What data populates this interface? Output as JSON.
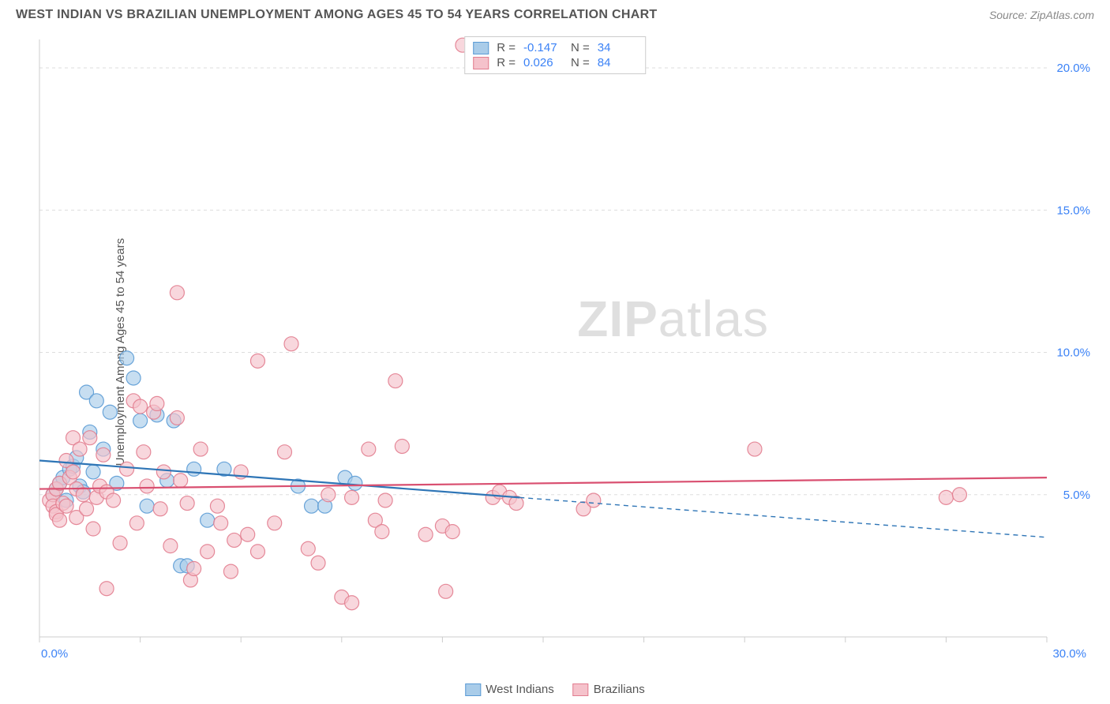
{
  "header": {
    "title": "WEST INDIAN VS BRAZILIAN UNEMPLOYMENT AMONG AGES 45 TO 54 YEARS CORRELATION CHART",
    "source": "Source: ZipAtlas.com"
  },
  "chart": {
    "type": "scatter",
    "ylabel": "Unemployment Among Ages 45 to 54 years",
    "xlim": [
      0,
      30
    ],
    "ylim": [
      0,
      21
    ],
    "x_ticks": [
      0,
      3,
      6,
      9,
      12,
      15,
      18,
      21,
      24,
      27,
      30
    ],
    "x_tick_labels": {
      "0": "0.0%",
      "30": "30.0%"
    },
    "y_ticks": [
      5,
      10,
      15,
      20
    ],
    "y_tick_labels": {
      "5": "5.0%",
      "10": "10.0%",
      "15": "15.0%",
      "20": "20.0%"
    },
    "grid_color": "#dddddd",
    "grid_dash": "4,4",
    "axis_color": "#cccccc",
    "background_color": "#ffffff",
    "tick_label_color": "#3b82f6",
    "marker_radius": 9,
    "marker_opacity": 0.65,
    "line_width": 2.2,
    "series": [
      {
        "name": "West Indians",
        "key": "west_indians",
        "color_fill": "#a9cce9",
        "color_stroke": "#5b9bd5",
        "line_color": "#2e75b6",
        "R": "-0.147",
        "N": "34",
        "trend": {
          "x1": 0,
          "y1": 6.2,
          "x2": 14.3,
          "y2": 4.9,
          "ext_x2": 30,
          "ext_y2": 3.5
        },
        "points": [
          [
            0.4,
            5.0
          ],
          [
            0.5,
            5.2
          ],
          [
            0.6,
            5.4
          ],
          [
            0.7,
            5.6
          ],
          [
            0.8,
            4.8
          ],
          [
            0.9,
            5.9
          ],
          [
            1.0,
            6.0
          ],
          [
            1.1,
            6.3
          ],
          [
            1.2,
            5.3
          ],
          [
            1.3,
            5.1
          ],
          [
            1.4,
            8.6
          ],
          [
            1.5,
            7.2
          ],
          [
            1.6,
            5.8
          ],
          [
            1.7,
            8.3
          ],
          [
            1.9,
            6.6
          ],
          [
            2.1,
            7.9
          ],
          [
            2.3,
            5.4
          ],
          [
            2.6,
            9.8
          ],
          [
            2.8,
            9.1
          ],
          [
            3.0,
            7.6
          ],
          [
            3.2,
            4.6
          ],
          [
            3.5,
            7.8
          ],
          [
            3.8,
            5.5
          ],
          [
            4.0,
            7.6
          ],
          [
            4.2,
            2.5
          ],
          [
            4.4,
            2.5
          ],
          [
            4.6,
            5.9
          ],
          [
            5.0,
            4.1
          ],
          [
            5.5,
            5.9
          ],
          [
            7.7,
            5.3
          ],
          [
            8.1,
            4.6
          ],
          [
            8.5,
            4.6
          ],
          [
            9.1,
            5.6
          ],
          [
            9.4,
            5.4
          ]
        ]
      },
      {
        "name": "Brazilians",
        "key": "brazilians",
        "color_fill": "#f5c2cb",
        "color_stroke": "#e27d8f",
        "line_color": "#d94f70",
        "R": "0.026",
        "N": "84",
        "trend": {
          "x1": 0,
          "y1": 5.2,
          "x2": 30,
          "y2": 5.6,
          "ext_x2": 30,
          "ext_y2": 5.6
        },
        "points": [
          [
            0.3,
            4.8
          ],
          [
            0.4,
            5.0
          ],
          [
            0.4,
            4.6
          ],
          [
            0.5,
            4.4
          ],
          [
            0.5,
            5.2
          ],
          [
            0.5,
            4.3
          ],
          [
            0.6,
            4.1
          ],
          [
            0.6,
            5.4
          ],
          [
            0.7,
            4.7
          ],
          [
            0.8,
            6.2
          ],
          [
            0.8,
            4.6
          ],
          [
            0.9,
            5.6
          ],
          [
            1.0,
            7.0
          ],
          [
            1.0,
            5.8
          ],
          [
            1.1,
            4.2
          ],
          [
            1.1,
            5.2
          ],
          [
            1.2,
            6.6
          ],
          [
            1.3,
            5.0
          ],
          [
            1.4,
            4.5
          ],
          [
            1.5,
            7.0
          ],
          [
            1.6,
            3.8
          ],
          [
            1.7,
            4.9
          ],
          [
            1.8,
            5.3
          ],
          [
            1.9,
            6.4
          ],
          [
            2.0,
            5.1
          ],
          [
            2.0,
            1.7
          ],
          [
            2.2,
            4.8
          ],
          [
            2.4,
            3.3
          ],
          [
            2.6,
            5.9
          ],
          [
            2.8,
            8.3
          ],
          [
            2.9,
            4.0
          ],
          [
            3.0,
            8.1
          ],
          [
            3.1,
            6.5
          ],
          [
            3.2,
            5.3
          ],
          [
            3.4,
            7.9
          ],
          [
            3.5,
            8.2
          ],
          [
            3.6,
            4.5
          ],
          [
            3.7,
            5.8
          ],
          [
            3.9,
            3.2
          ],
          [
            4.1,
            7.7
          ],
          [
            4.1,
            12.1
          ],
          [
            4.2,
            5.5
          ],
          [
            4.4,
            4.7
          ],
          [
            4.5,
            2.0
          ],
          [
            4.6,
            2.4
          ],
          [
            4.8,
            6.6
          ],
          [
            5.0,
            3.0
          ],
          [
            5.3,
            4.6
          ],
          [
            5.4,
            4.0
          ],
          [
            5.7,
            2.3
          ],
          [
            5.8,
            3.4
          ],
          [
            6.0,
            5.8
          ],
          [
            6.2,
            3.6
          ],
          [
            6.5,
            9.7
          ],
          [
            6.5,
            3.0
          ],
          [
            7.0,
            4.0
          ],
          [
            7.3,
            6.5
          ],
          [
            7.5,
            10.3
          ],
          [
            8.0,
            3.1
          ],
          [
            8.3,
            2.6
          ],
          [
            8.6,
            5.0
          ],
          [
            9.0,
            1.4
          ],
          [
            9.3,
            4.9
          ],
          [
            9.3,
            1.2
          ],
          [
            9.8,
            6.6
          ],
          [
            10.0,
            4.1
          ],
          [
            10.2,
            3.7
          ],
          [
            10.3,
            4.8
          ],
          [
            10.6,
            9.0
          ],
          [
            10.8,
            6.7
          ],
          [
            11.5,
            3.6
          ],
          [
            12.0,
            3.9
          ],
          [
            12.1,
            1.6
          ],
          [
            12.3,
            3.7
          ],
          [
            12.6,
            20.8
          ],
          [
            13.5,
            4.9
          ],
          [
            13.7,
            5.1
          ],
          [
            14.0,
            4.9
          ],
          [
            14.2,
            4.7
          ],
          [
            16.2,
            4.5
          ],
          [
            16.5,
            4.8
          ],
          [
            21.3,
            6.6
          ],
          [
            27.0,
            4.9
          ],
          [
            27.4,
            5.0
          ]
        ]
      }
    ]
  },
  "legend_bottom": [
    {
      "label": "West Indians",
      "key": "west_indians"
    },
    {
      "label": "Brazilians",
      "key": "brazilians"
    }
  ],
  "watermark": {
    "bold": "ZIP",
    "rest": "atlas"
  }
}
